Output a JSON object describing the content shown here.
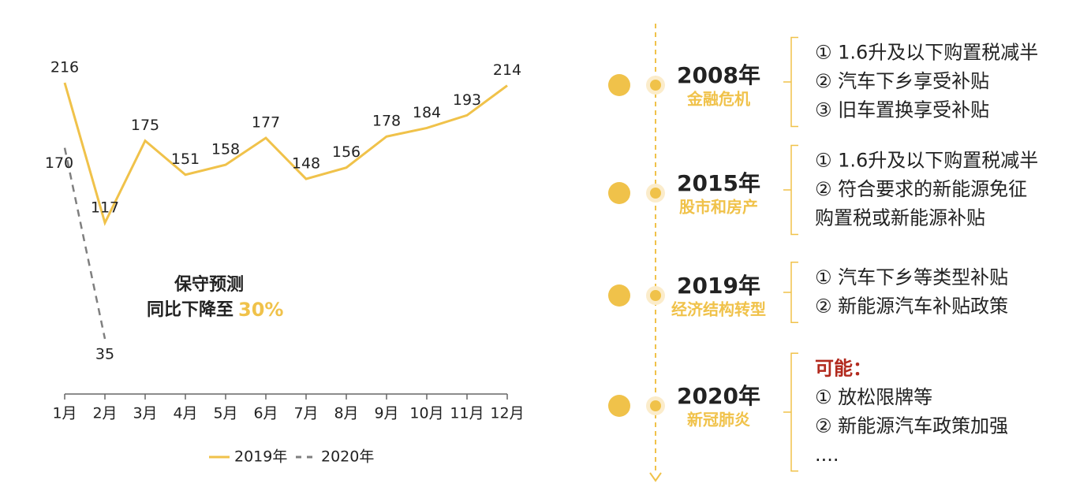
{
  "chart_data": {
    "type": "line",
    "categories": [
      "1月",
      "2月",
      "3月",
      "4月",
      "5月",
      "6月",
      "7月",
      "8月",
      "9月",
      "10月",
      "11月",
      "12月"
    ],
    "series": [
      {
        "name": "2019年",
        "color": "#f0c24a",
        "values": [
          216,
          117,
          175,
          151,
          158,
          177,
          148,
          156,
          178,
          184,
          193,
          214
        ]
      },
      {
        "name": "2020年",
        "color": "#7f7f7f",
        "values": [
          170,
          35,
          null,
          null,
          null,
          null,
          null,
          null,
          null,
          null,
          null,
          null
        ]
      }
    ],
    "annotation": {
      "line1": "保守预测",
      "line2": "同比下降至",
      "highlight": "30%"
    }
  },
  "timeline": [
    {
      "year": "2008年",
      "event": "金融危机",
      "points": [
        "① 1.6升及以下购置税减半",
        "② 汽车下乡享受补贴",
        "③ 旧车置换享受补贴"
      ]
    },
    {
      "year": "2015年",
      "event": "股市和房产",
      "points": [
        "① 1.6升及以下购置税减半",
        "② 符合要求的新能源免征",
        "购置税或新能源补贴"
      ]
    },
    {
      "year": "2019年",
      "event": "经济结构转型",
      "points": [
        "① 汽车下乡等类型补贴",
        "② 新能源汽车补贴政策"
      ]
    },
    {
      "year": "2020年",
      "event": "新冠肺炎",
      "lead": "可能：",
      "points": [
        "① 放松限牌等",
        "② 新能源汽车政策加强",
        "...."
      ]
    }
  ]
}
